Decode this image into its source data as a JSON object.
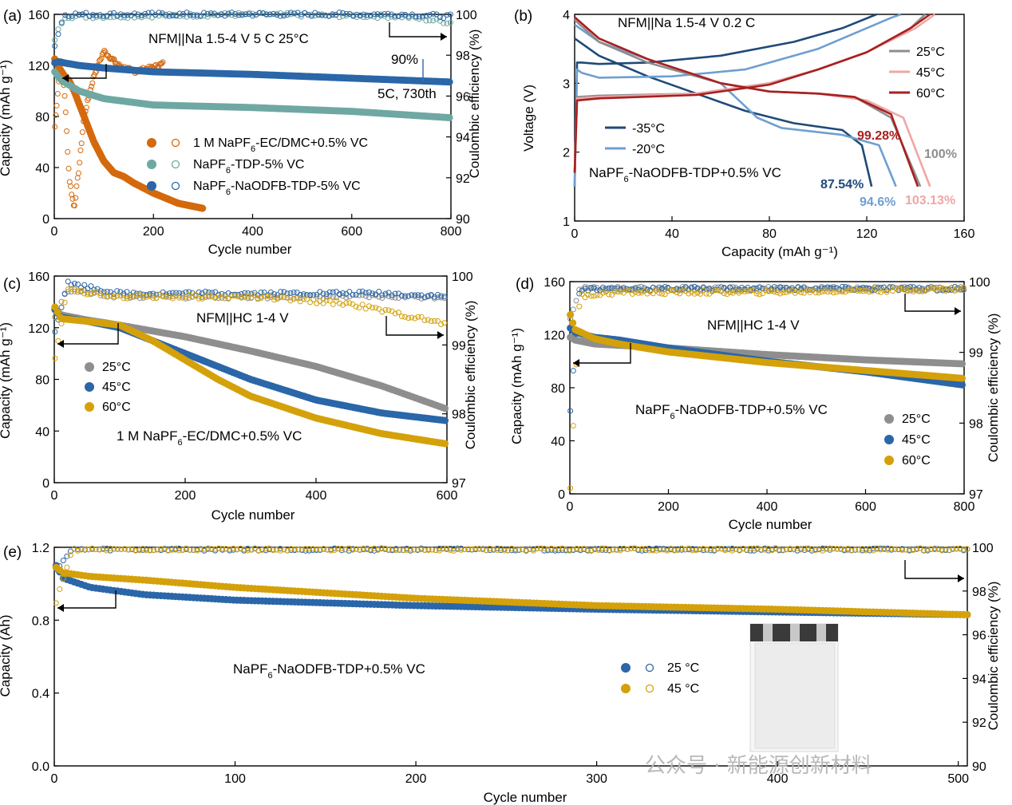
{
  "watermark": "公众号 · 新能源创新材料",
  "colors": {
    "orange": "#d4690d",
    "teal": "#6fa8a2",
    "blue": "#2a66a8",
    "gray": "#8e8e8e",
    "gold": "#d4a10a",
    "navy": "#1f4a78",
    "lightblue": "#6f9fd0",
    "lightpink": "#f0a6a6",
    "darkred": "#a82020",
    "annoblue": "#3d6eb0"
  },
  "chart_data": [
    {
      "panel": "(a)",
      "type": "scatter",
      "annotation": "NFM||Na   1.5-4 V   5 C  25°C",
      "xlabel": "Cycle number",
      "ylabel": "Capacity (mAh g⁻¹)",
      "y2label": "Coulombic efficiency (%)",
      "xlim": [
        0,
        800
      ],
      "ylim": [
        0,
        160
      ],
      "y2lim": [
        90,
        100
      ],
      "xticks": [
        "0",
        "200",
        "400",
        "600",
        "800"
      ],
      "yticks": [
        "0",
        "40",
        "80",
        "120",
        "160"
      ],
      "y2ticks": [
        "90",
        "92",
        "94",
        "96",
        "98",
        "100"
      ],
      "extra_labels": [
        "90%",
        "5C, 730th"
      ],
      "series": [
        {
          "name": "1 M NaPF6-EC/DMC+0.5% VC",
          "color": "orange",
          "capacity": {
            "x": [
              1,
              10,
              20,
              30,
              40,
              50,
              60,
              80,
              100,
              120,
              140,
              160,
              200,
              250,
              300
            ],
            "y": [
              125,
              118,
              112,
              108,
              100,
              90,
              80,
              60,
              45,
              36,
              33,
              28,
              20,
              12,
              8
            ]
          },
          "ce": {
            "x": [
              1,
              10,
              20,
              30,
              40,
              50,
              60,
              80,
              100,
              130,
              160,
              200,
              220
            ],
            "y": [
              94.5,
              97,
              96.5,
              92,
              90.5,
              92.5,
              95,
              97,
              98.2,
              97.5,
              97.2,
              97.4,
              97.6
            ]
          }
        },
        {
          "name": "NaPF6-TDP-5% VC",
          "color": "teal",
          "capacity": {
            "x": [
              1,
              10,
              20,
              50,
              100,
              200,
              400,
              600,
              800
            ],
            "y": [
              115,
              110,
              107,
              100,
              94,
              89,
              87,
              84,
              79
            ]
          },
          "ce": {
            "x": [
              1,
              20,
              100,
              400,
              700,
              800
            ],
            "y": [
              98.8,
              99.9,
              99.9,
              100.0,
              99.9,
              99.6
            ]
          }
        },
        {
          "name": "NaPF6-NaODFB-TDP-5% VC",
          "color": "blue",
          "capacity": {
            "x": [
              1,
              10,
              20,
              50,
              100,
              200,
              400,
              600,
              800
            ],
            "y": [
              122,
              123,
              122,
              120,
              118,
              115,
              113,
              110,
              107
            ]
          },
          "ce": {
            "x": [
              1,
              20,
              100,
              400,
              700,
              800
            ],
            "y": [
              98.5,
              100.0,
              100.0,
              100.0,
              100.0,
              99.9
            ]
          }
        }
      ]
    },
    {
      "panel": "(b)",
      "type": "line",
      "annotation": "NFM||Na  1.5-4 V  0.2 C",
      "electrolyte": "NaPF6-NaODFB-TDP+0.5% VC",
      "xlabel": "Capacity (mAh g⁻¹)",
      "ylabel": "Voltage (V)",
      "xlim": [
        0,
        160
      ],
      "ylim": [
        1,
        4
      ],
      "xticks": [
        "0",
        "40",
        "80",
        "120",
        "160"
      ],
      "yticks": [
        "1",
        "2",
        "3",
        "4"
      ],
      "series": [
        {
          "name": "-35°C",
          "color": "navy",
          "retention": "87.54%",
          "charge": {
            "x": [
              0,
              1,
              3,
              10,
              30,
              60,
              90,
              110,
              124
            ],
            "y": [
              1.5,
              3.3,
              3.3,
              3.28,
              3.3,
              3.4,
              3.6,
              3.8,
              4.0
            ]
          },
          "discharge": {
            "x": [
              0,
              10,
              30,
              50,
              70,
              90,
              110,
              118,
              122
            ],
            "y": [
              3.65,
              3.4,
              3.1,
              2.85,
              2.6,
              2.42,
              2.32,
              2.1,
              1.5
            ]
          }
        },
        {
          "name": "-20°C",
          "color": "lightblue",
          "retention": "94.6%",
          "charge": {
            "x": [
              0,
              1,
              3,
              10,
              40,
              70,
              100,
              130,
              134
            ],
            "y": [
              1.5,
              3.2,
              3.15,
              3.08,
              3.1,
              3.2,
              3.5,
              3.95,
              4.0
            ]
          },
          "discharge": {
            "x": [
              0,
              10,
              30,
              60,
              75,
              85,
              110,
              125,
              132
            ],
            "y": [
              3.85,
              3.6,
              3.35,
              3.0,
              2.5,
              2.35,
              2.25,
              2.1,
              1.5
            ]
          }
        },
        {
          "name": "25°C",
          "color": "gray",
          "retention": "100%",
          "charge": {
            "x": [
              0,
              1,
              10,
              50,
              80,
              100,
              120,
              138,
              144
            ],
            "y": [
              1.7,
              2.8,
              2.82,
              2.85,
              3.0,
              3.2,
              3.45,
              3.8,
              4.0
            ]
          },
          "discharge": {
            "x": [
              0,
              10,
              30,
              60,
              80,
              100,
              115,
              130,
              142
            ],
            "y": [
              3.92,
              3.6,
              3.3,
              3.0,
              2.88,
              2.85,
              2.8,
              2.5,
              1.5
            ]
          }
        },
        {
          "name": "45°C",
          "color": "lightpink",
          "retention": "103.13%",
          "charge": {
            "x": [
              0,
              1,
              10,
              50,
              80,
              100,
              120,
              140,
              148
            ],
            "y": [
              1.7,
              2.78,
              2.8,
              2.85,
              3.0,
              3.2,
              3.45,
              3.8,
              4.0
            ]
          },
          "discharge": {
            "x": [
              0,
              10,
              30,
              60,
              80,
              100,
              120,
              135,
              146
            ],
            "y": [
              3.95,
              3.65,
              3.35,
              3.0,
              2.88,
              2.85,
              2.75,
              2.5,
              1.5
            ]
          }
        },
        {
          "name": "60°C",
          "color": "darkred",
          "retention": "99.28%",
          "charge": {
            "x": [
              0,
              1,
              10,
              50,
              80,
              100,
              120,
              138,
              146
            ],
            "y": [
              1.7,
              2.75,
              2.78,
              2.83,
              2.98,
              3.2,
              3.45,
              3.8,
              4.0
            ]
          },
          "discharge": {
            "x": [
              0,
              10,
              30,
              60,
              80,
              100,
              115,
              130,
              141
            ],
            "y": [
              3.96,
              3.65,
              3.35,
              3.0,
              2.88,
              2.85,
              2.8,
              2.55,
              1.5
            ]
          }
        }
      ]
    },
    {
      "panel": "(c)",
      "type": "scatter",
      "annotation": "NFM||HC  1-4 V",
      "electrolyte": "1 M NaPF6-EC/DMC+0.5% VC",
      "xlabel": "Cycle number",
      "ylabel": "Capacity (mAh g⁻¹)",
      "y2label": "Coulombic efficiency (%)",
      "xlim": [
        0,
        600
      ],
      "ylim": [
        0,
        160
      ],
      "y2lim": [
        97,
        100
      ],
      "xticks": [
        "0",
        "200",
        "400",
        "600"
      ],
      "yticks": [
        "0",
        "40",
        "80",
        "120",
        "160"
      ],
      "y2ticks": [
        "97",
        "98",
        "99",
        "100"
      ],
      "series": [
        {
          "name": "25°C",
          "color": "gray",
          "capacity": {
            "x": [
              1,
              10,
              50,
              100,
              200,
              300,
              400,
              500,
              600
            ],
            "y": [
              135,
              130,
              126,
              122,
              113,
              102,
              90,
              75,
              57
            ]
          },
          "ce": {
            "x": [
              1,
              20,
              100,
              300,
              500,
              600
            ],
            "y": [
              99.4,
              99.8,
              99.7,
              99.7,
              99.7,
              99.7
            ]
          }
        },
        {
          "name": "45°C",
          "color": "blue",
          "capacity": {
            "x": [
              1,
              10,
              50,
              100,
              150,
              200,
              300,
              400,
              500,
              600
            ],
            "y": [
              134,
              128,
              125,
              120,
              110,
              100,
              80,
              64,
              54,
              48
            ]
          },
          "ce": {
            "x": [
              1,
              20,
              100,
              300,
              500,
              600
            ],
            "y": [
              99.2,
              99.9,
              99.75,
              99.75,
              99.75,
              99.7
            ]
          }
        },
        {
          "name": "60°C",
          "color": "gold",
          "capacity": {
            "x": [
              1,
              10,
              50,
              100,
              150,
              200,
              250,
              300,
              400,
              500,
              600
            ],
            "y": [
              136,
              127,
              125,
              122,
              110,
              95,
              80,
              67,
              50,
              38,
              30
            ]
          },
          "ce": {
            "x": [
              1,
              20,
              100,
              300,
              450,
              500,
              550,
              600
            ],
            "y": [
              98.8,
              99.8,
              99.7,
              99.7,
              99.6,
              99.5,
              99.4,
              99.3
            ]
          }
        }
      ]
    },
    {
      "panel": "(d)",
      "type": "scatter",
      "annotation": "NFM||HC  1-4 V",
      "electrolyte": "NaPF6-NaODFB-TDP+0.5% VC",
      "xlabel": "Cycle number",
      "ylabel": "Capacity (mAh g⁻¹)",
      "y2label": "Coulombic efficiency (%)",
      "xlim": [
        0,
        800
      ],
      "ylim": [
        0,
        160
      ],
      "y2lim": [
        97,
        100
      ],
      "xticks": [
        "0",
        "200",
        "400",
        "600",
        "800"
      ],
      "yticks": [
        "0",
        "40",
        "80",
        "120",
        "160"
      ],
      "y2ticks": [
        "97",
        "98",
        "99",
        "100"
      ],
      "series": [
        {
          "name": "25°C",
          "color": "gray",
          "capacity": {
            "x": [
              1,
              10,
              50,
              100,
              200,
              400,
              600,
              800
            ],
            "y": [
              118,
              116,
              113,
              112,
              110,
              105,
              101,
              98
            ]
          },
          "ce": {
            "x": [
              1,
              20,
              100,
              400,
              800
            ],
            "y": [
              99.5,
              99.9,
              99.9,
              99.9,
              99.9
            ]
          }
        },
        {
          "name": "45°C",
          "color": "blue",
          "capacity": {
            "x": [
              1,
              10,
              50,
              100,
              200,
              400,
              600,
              800
            ],
            "y": [
              125,
              122,
              118,
              116,
              110,
              100,
              92,
              82
            ]
          },
          "ce": {
            "x": [
              1,
              20,
              100,
              400,
              800
            ],
            "y": [
              98.2,
              99.9,
              99.9,
              99.9,
              99.9
            ]
          }
        },
        {
          "name": "60°C",
          "color": "gold",
          "capacity": {
            "x": [
              1,
              10,
              50,
              100,
              200,
              400,
              600,
              800
            ],
            "y": [
              135,
              124,
              117,
              113,
              107,
              99,
              93,
              87
            ]
          },
          "ce": {
            "x": [
              1,
              20,
              100,
              400,
              800
            ],
            "y": [
              97.1,
              99.8,
              99.85,
              99.85,
              99.9
            ]
          }
        }
      ]
    },
    {
      "panel": "(e)",
      "type": "scatter",
      "electrolyte": "NaPF6-NaODFB-TDP+0.5% VC",
      "xlabel": "Cycle number",
      "ylabel": "Capacity (Ah)",
      "y2label": "Coulombic efficiency (%)",
      "xlim": [
        0,
        505
      ],
      "ylim": [
        0,
        1.2
      ],
      "y2lim": [
        90,
        100
      ],
      "xticks": [
        "0",
        "100",
        "200",
        "300",
        "400",
        "500"
      ],
      "yticks": [
        "0.0",
        "0.4",
        "0.8",
        "1.2"
      ],
      "y2ticks": [
        "90",
        "92",
        "94",
        "96",
        "98",
        "100"
      ],
      "series": [
        {
          "name": "25 °C",
          "color": "blue",
          "capacity": {
            "x": [
              1,
              5,
              20,
              50,
              100,
              200,
              300,
              400,
              505
            ],
            "y": [
              1.1,
              1.03,
              0.98,
              0.94,
              0.91,
              0.88,
              0.86,
              0.845,
              0.83
            ]
          },
          "ce": {
            "x": [
              1,
              10,
              100,
              300,
              505
            ],
            "y": [
              99.0,
              99.9,
              99.9,
              99.9,
              99.9
            ]
          }
        },
        {
          "name": "45 °C",
          "color": "gold",
          "capacity": {
            "x": [
              1,
              5,
              20,
              50,
              100,
              200,
              300,
              400,
              505
            ],
            "y": [
              1.09,
              1.06,
              1.04,
              1.02,
              0.98,
              0.92,
              0.88,
              0.86,
              0.83
            ]
          },
          "ce": {
            "x": [
              1,
              10,
              100,
              300,
              505
            ],
            "y": [
              97.5,
              99.9,
              99.9,
              99.9,
              99.9
            ]
          }
        }
      ]
    }
  ]
}
